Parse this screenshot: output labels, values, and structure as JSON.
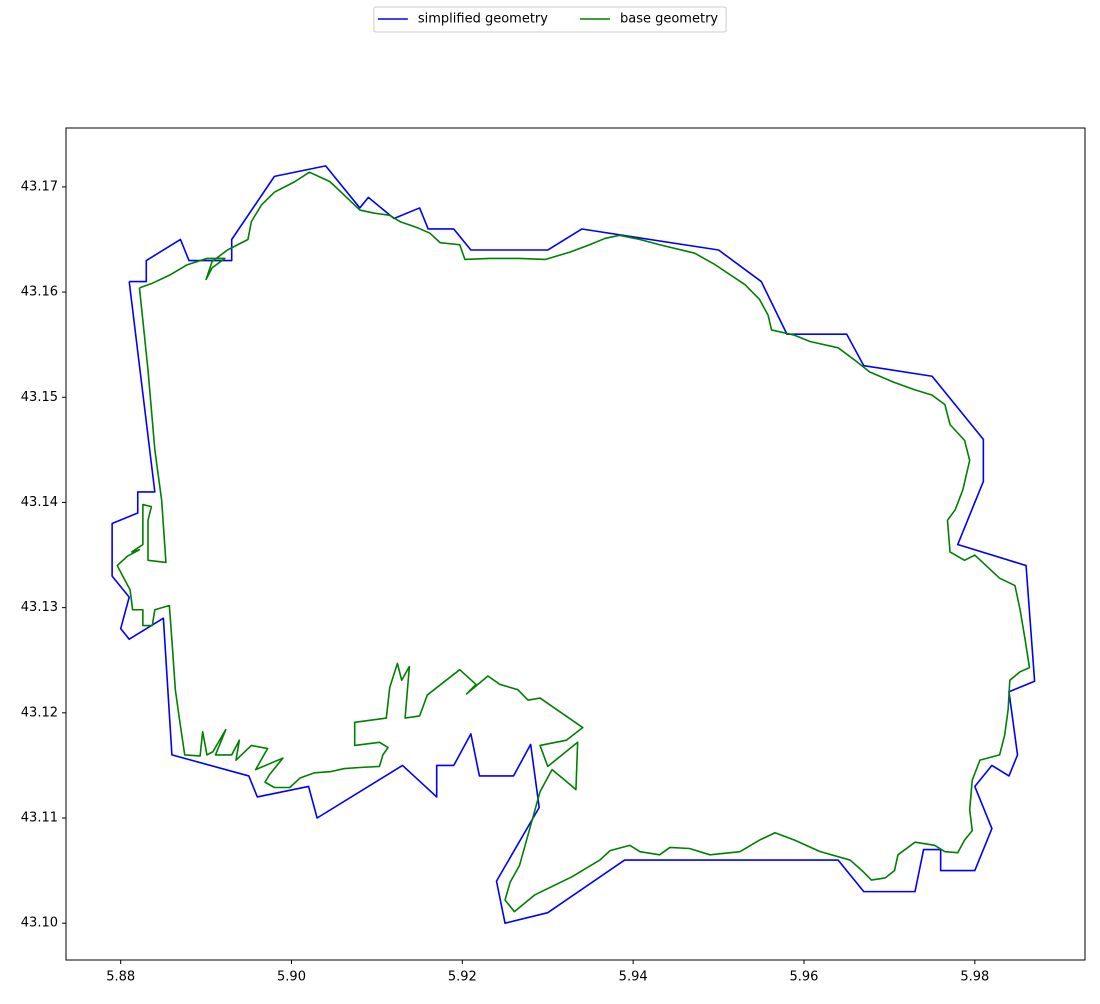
{
  "chart_data": {
    "type": "line",
    "legend": "upper center",
    "xlim": [
      5.8736,
      5.9929
    ],
    "ylim": [
      43.0965,
      43.1756
    ],
    "xticks": [
      5.88,
      {
        "value": 5.9,
        "label": "5.90"
      },
      5.92,
      5.94,
      5.96,
      5.98
    ],
    "yticks": [
      {
        "value": 43.1,
        "label": "43.10"
      },
      43.11,
      43.12,
      43.13,
      43.14,
      43.15,
      43.16,
      43.17
    ],
    "series": [
      {
        "name": "simplified geometry",
        "color": "#0000ff",
        "x": [
          5.881,
          5.883,
          5.883,
          5.887,
          5.888,
          5.891,
          5.893,
          5.893,
          5.898,
          5.904,
          5.908,
          5.909,
          5.912,
          5.915,
          5.916,
          5.919,
          5.921,
          5.93,
          5.934,
          5.95,
          5.955,
          5.958,
          5.965,
          5.967,
          5.975,
          5.981,
          5.981,
          5.978,
          5.986,
          5.987,
          5.984,
          5.985,
          5.984,
          5.982,
          5.98,
          5.982,
          5.98,
          5.976,
          5.976,
          5.974,
          5.973,
          5.967,
          5.964,
          5.939,
          5.93,
          5.925,
          5.924,
          5.929,
          5.928,
          5.926,
          5.922,
          5.921,
          5.919,
          5.917,
          5.917,
          5.913,
          5.903,
          5.902,
          5.896,
          5.895,
          5.886,
          5.885,
          5.881,
          5.88,
          5.881,
          5.879,
          5.879,
          5.882,
          5.882,
          5.884,
          5.881
        ],
        "values": [
          43.161,
          43.161,
          43.163,
          43.165,
          43.163,
          43.163,
          43.163,
          43.165,
          43.171,
          43.172,
          43.168,
          43.169,
          43.167,
          43.168,
          43.166,
          43.166,
          43.164,
          43.164,
          43.166,
          43.164,
          43.161,
          43.156,
          43.156,
          43.153,
          43.152,
          43.146,
          43.142,
          43.136,
          43.134,
          43.123,
          43.122,
          43.116,
          43.114,
          43.115,
          43.113,
          43.109,
          43.105,
          43.105,
          43.107,
          43.107,
          43.103,
          43.103,
          43.106,
          43.106,
          43.101,
          43.1,
          43.104,
          43.111,
          43.117,
          43.114,
          43.114,
          43.118,
          43.115,
          43.115,
          43.112,
          43.115,
          43.11,
          43.113,
          43.112,
          43.114,
          43.116,
          43.129,
          43.127,
          43.128,
          43.131,
          43.133,
          43.138,
          43.139,
          43.141,
          43.141,
          43.161
        ]
      },
      {
        "name": "base geometry",
        "color": "#008000",
        "x": [
          5.8822,
          5.8832,
          5.884,
          5.8848,
          5.8853,
          5.8832,
          5.8832,
          5.8836,
          5.8826,
          5.8826,
          5.8813,
          5.8822,
          5.8808,
          5.8796,
          5.8805,
          5.8811,
          5.8814,
          5.8826,
          5.8826,
          5.8837,
          5.884,
          5.8857,
          5.886,
          5.8864,
          5.8869,
          5.8875,
          5.8893,
          5.8896,
          5.8901,
          5.8908,
          5.8923,
          5.8911,
          5.893,
          5.8939,
          5.8935,
          5.8953,
          5.8972,
          5.8958,
          5.899,
          5.8974,
          5.8969,
          5.898,
          5.8998,
          5.901,
          5.9027,
          5.9045,
          5.9062,
          5.908,
          5.9103,
          5.9107,
          5.9113,
          5.9103,
          5.9074,
          5.9074,
          5.9111,
          5.9115,
          5.9124,
          5.9129,
          5.9138,
          5.9133,
          5.915,
          5.9159,
          5.9197,
          5.9216,
          5.9205,
          5.923,
          5.9244,
          5.9265,
          5.9277,
          5.9291,
          5.9341,
          5.9322,
          5.9291,
          5.93,
          5.9335,
          5.9333,
          5.932,
          5.9305,
          5.9291,
          5.9267,
          5.9256,
          5.925,
          5.9261,
          5.9285,
          5.9328,
          5.9361,
          5.9373,
          5.9396,
          5.9408,
          5.9431,
          5.9443,
          5.9466,
          5.949,
          5.9525,
          5.9548,
          5.9566,
          5.9589,
          5.9619,
          5.9654,
          5.9668,
          5.9679,
          5.9695,
          5.9706,
          5.971,
          5.973,
          5.9753,
          5.9765,
          5.978,
          5.9788,
          5.9797,
          5.9794,
          5.9797,
          5.9806,
          5.9829,
          5.9835,
          5.9839,
          5.9841,
          5.9853,
          5.9864,
          5.9859,
          5.9853,
          5.9847,
          5.9829,
          5.98,
          5.9788,
          5.9771,
          5.9768,
          5.9777,
          5.9786,
          5.9794,
          5.9788,
          5.9771,
          5.9765,
          5.975,
          5.973,
          5.9706,
          5.9677,
          5.966,
          5.964,
          5.9607,
          5.9589,
          5.9562,
          5.9558,
          5.9548,
          5.9531,
          5.9496,
          5.9472,
          5.9431,
          5.9408,
          5.9384,
          5.9367,
          5.9349,
          5.9326,
          5.9297,
          5.9267,
          5.9232,
          5.9203,
          5.9197,
          5.9174,
          5.9162,
          5.9148,
          5.9127,
          5.9115,
          5.9097,
          5.908,
          5.9062,
          5.9045,
          5.9021,
          5.9004,
          5.898,
          5.8965,
          5.8953,
          5.8949,
          5.8925,
          5.8907,
          5.89,
          5.8907,
          5.8922,
          5.8901,
          5.8878,
          5.8857,
          5.8836,
          5.8822
        ],
        "values": [
          43.1604,
          43.1526,
          43.145,
          43.1402,
          43.1343,
          43.1345,
          43.1383,
          43.1396,
          43.1398,
          43.136,
          43.1353,
          43.1355,
          43.1349,
          43.134,
          43.1326,
          43.1317,
          43.1298,
          43.1298,
          43.1283,
          43.1283,
          43.1298,
          43.1302,
          43.1269,
          43.1222,
          43.1193,
          43.116,
          43.1159,
          43.1182,
          43.116,
          43.1163,
          43.1184,
          43.116,
          43.116,
          43.1174,
          43.1155,
          43.1169,
          43.1166,
          43.1146,
          43.1157,
          43.1141,
          43.1134,
          43.1129,
          43.1129,
          43.1138,
          43.1143,
          43.1144,
          43.1147,
          43.1148,
          43.1149,
          43.116,
          43.1167,
          43.1172,
          43.1169,
          43.1191,
          43.1195,
          43.1224,
          43.1247,
          43.1231,
          43.1244,
          43.1195,
          43.1197,
          43.1217,
          43.1241,
          43.1227,
          43.1218,
          43.1235,
          43.1227,
          43.1222,
          43.1212,
          43.1214,
          43.1186,
          43.1174,
          43.1169,
          43.1149,
          43.1172,
          43.1127,
          43.1136,
          43.1146,
          43.1125,
          43.1055,
          43.1039,
          43.1022,
          43.1011,
          43.1027,
          43.1044,
          43.106,
          43.1069,
          43.1074,
          43.1068,
          43.1065,
          43.1072,
          43.1071,
          43.1065,
          43.1068,
          43.1079,
          43.1086,
          43.1079,
          43.1068,
          43.106,
          43.105,
          43.1041,
          43.1043,
          43.105,
          43.1065,
          43.1077,
          43.1074,
          43.1068,
          43.1067,
          43.1079,
          43.1088,
          43.1108,
          43.1136,
          43.1155,
          43.116,
          43.1179,
          43.1203,
          43.1231,
          43.1239,
          43.1243,
          43.1269,
          43.1298,
          43.1321,
          43.1328,
          43.135,
          43.1345,
          43.1353,
          43.1383,
          43.1393,
          43.1412,
          43.144,
          43.1459,
          43.1474,
          43.1493,
          43.1502,
          43.1507,
          43.1514,
          43.1524,
          43.1535,
          43.1547,
          43.1553,
          43.1559,
          43.1564,
          43.1578,
          43.1593,
          43.1607,
          43.1626,
          43.1637,
          43.1645,
          43.165,
          43.1654,
          43.1651,
          43.1645,
          43.1638,
          43.1631,
          43.1632,
          43.1632,
          43.1631,
          43.1645,
          43.1647,
          43.1656,
          43.1661,
          43.1667,
          43.1673,
          43.1675,
          43.1678,
          43.1692,
          43.1705,
          43.1714,
          43.1705,
          43.1695,
          43.1683,
          43.1667,
          43.165,
          43.164,
          43.1629,
          43.1612,
          43.1623,
          43.1632,
          43.1632,
          43.1626,
          43.1616,
          43.1608,
          43.1604
        ]
      }
    ]
  }
}
